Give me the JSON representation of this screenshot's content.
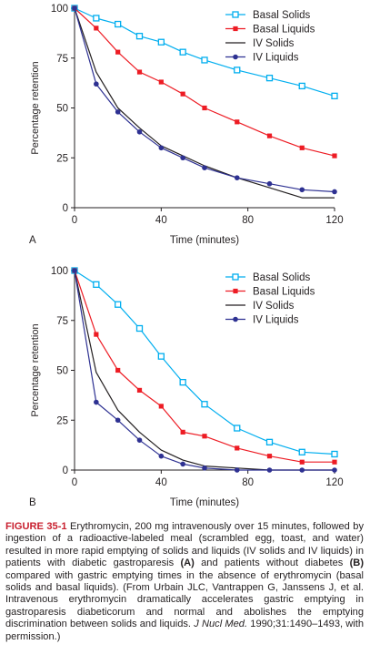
{
  "chart_data": [
    {
      "type": "line",
      "panel_label": "A",
      "xlabel": "Time (minutes)",
      "ylabel": "Percentage retention",
      "xlim": [
        0,
        120
      ],
      "ylim": [
        0,
        100
      ],
      "xticks": [
        0,
        40,
        80,
        120
      ],
      "yticks": [
        0,
        25,
        50,
        75,
        100
      ],
      "legend_position": "top-right",
      "series": [
        {
          "name": "Basal Solids",
          "marker": "open-square",
          "color": "#00aeef",
          "x": [
            0,
            10,
            20,
            30,
            40,
            50,
            60,
            75,
            90,
            105,
            120
          ],
          "y": [
            100,
            95,
            92,
            86,
            83,
            78,
            74,
            69,
            65,
            61,
            56
          ]
        },
        {
          "name": "Basal Liquids",
          "marker": "filled-square",
          "color": "#ed1c24",
          "x": [
            0,
            10,
            20,
            30,
            40,
            50,
            60,
            75,
            90,
            105,
            120
          ],
          "y": [
            100,
            90,
            78,
            68,
            63,
            57,
            50,
            43,
            36,
            30,
            26
          ]
        },
        {
          "name": "IV Solids",
          "marker": "none",
          "color": "#231f20",
          "x": [
            0,
            10,
            20,
            30,
            40,
            50,
            60,
            75,
            90,
            105,
            120
          ],
          "y": [
            100,
            68,
            50,
            40,
            31,
            26,
            21,
            15,
            10,
            5,
            5
          ]
        },
        {
          "name": "IV Liquids",
          "marker": "filled-circle",
          "color": "#2e3192",
          "x": [
            0,
            10,
            20,
            30,
            40,
            50,
            60,
            75,
            90,
            105,
            120
          ],
          "y": [
            100,
            62,
            48,
            38,
            30,
            25,
            20,
            15,
            12,
            9,
            8
          ]
        }
      ]
    },
    {
      "type": "line",
      "panel_label": "B",
      "xlabel": "Time (minutes)",
      "ylabel": "Percentage retention",
      "xlim": [
        0,
        120
      ],
      "ylim": [
        0,
        100
      ],
      "xticks": [
        0,
        40,
        80,
        120
      ],
      "yticks": [
        0,
        25,
        50,
        75,
        100
      ],
      "legend_position": "top-right",
      "series": [
        {
          "name": "Basal Solids",
          "marker": "open-square",
          "color": "#00aeef",
          "x": [
            0,
            10,
            20,
            30,
            40,
            50,
            60,
            75,
            90,
            105,
            120
          ],
          "y": [
            100,
            93,
            83,
            71,
            57,
            44,
            33,
            21,
            14,
            9,
            8
          ]
        },
        {
          "name": "Basal Liquids",
          "marker": "filled-square",
          "color": "#ed1c24",
          "x": [
            0,
            10,
            20,
            30,
            40,
            50,
            60,
            75,
            90,
            105,
            120
          ],
          "y": [
            100,
            68,
            50,
            40,
            32,
            19,
            17,
            11,
            7,
            4,
            4
          ]
        },
        {
          "name": "IV Solids",
          "marker": "none",
          "color": "#231f20",
          "x": [
            0,
            10,
            20,
            30,
            40,
            50,
            60,
            75,
            90,
            105,
            120
          ],
          "y": [
            100,
            49,
            30,
            19,
            10,
            5,
            2,
            1,
            0,
            0,
            0
          ]
        },
        {
          "name": "IV Liquids",
          "marker": "filled-circle",
          "color": "#2e3192",
          "x": [
            0,
            10,
            20,
            30,
            40,
            50,
            60,
            75,
            90,
            105,
            120
          ],
          "y": [
            100,
            34,
            25,
            15,
            7,
            3,
            1,
            0,
            0,
            0,
            0
          ]
        }
      ]
    }
  ],
  "caption": {
    "label": "FIGURE 35-1",
    "text_1": " Erythromycin, 200 mg intravenously over 15 minutes, followed by ingestion of a radioactive-labeled meal (scrambled egg, toast, and water) resulted in more rapid emptying of solids and liquids (IV solids and IV liquids) in patients with diabetic gastroparesis ",
    "ref_a": "(A)",
    "text_2": " and patients without diabetes ",
    "ref_b": "(B)",
    "text_3": " compared with gastric emptying times in the absence of erythromycin (basal solids and basal liquids). (From Urbain JLC, Vantrappen G, Janssens J, et al. Intravenous erythromycin dramatically accelerates gastric emptying in gastroparesis diabeticorum and normal and abolishes the emptying discrimination between solids and liquids. ",
    "journal": "J Nucl Med.",
    "text_4": " 1990;31:1490–1493, with permission.)"
  }
}
